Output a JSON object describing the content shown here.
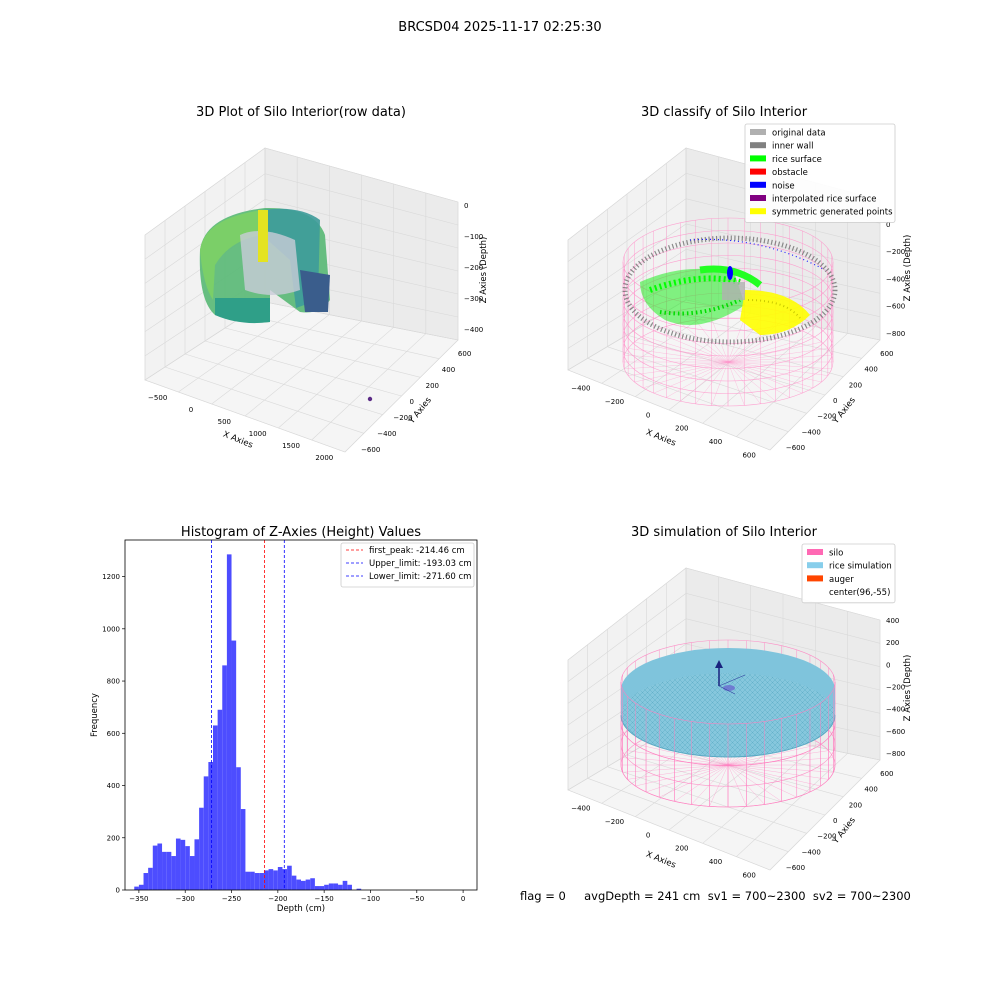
{
  "figure": {
    "suptitle": "BRCSD04 2025-11-17 02:25:30",
    "status_text": "flag = 0     avgDepth = 241 cm  sv1 = 700~2300  sv2 = 700~2300"
  },
  "chart_data": [
    {
      "type": "scatter3d",
      "title": "3D Plot of Silo Interior(row data)",
      "xlabel": "X Axies",
      "ylabel": "Y Axies",
      "zlabel": "Z Axies (Depth)",
      "xticks": [
        "−500",
        "0",
        "500",
        "1000",
        "1500",
        "2000"
      ],
      "yticks": [
        "600",
        "400",
        "200",
        "0",
        "−200",
        "−400",
        "−600"
      ],
      "zticks": [
        "0",
        "−100",
        "−200",
        "−300",
        "−400"
      ],
      "colormap": "viridis",
      "outlier_color": "#5b2a86"
    },
    {
      "type": "scatter3d",
      "title": "3D classify of Silo Interior",
      "xlabel": "X Axies",
      "ylabel": "Y Axies",
      "zlabel": "Z Axies (Depth)",
      "xticks": [
        "−400",
        "−200",
        "0",
        "200",
        "400",
        "600"
      ],
      "yticks": [
        "600",
        "400",
        "200",
        "0",
        "−200",
        "−400",
        "−600"
      ],
      "zticks": [
        "200",
        "0",
        "−200",
        "−400",
        "−600",
        "−800"
      ],
      "zticks_visible": [
        "0",
        "−200",
        "−400",
        "−600",
        "−800"
      ],
      "legend": [
        {
          "label": "original data",
          "color": "#b0b0b0"
        },
        {
          "label": "inner wall",
          "color": "#808080"
        },
        {
          "label": "rice surface",
          "color": "#00ff00"
        },
        {
          "label": "obstacle",
          "color": "#ff0000"
        },
        {
          "label": "noise",
          "color": "#0000ff"
        },
        {
          "label": "interpolated rice surface",
          "color": "#800080"
        },
        {
          "label": "symmetric generated points",
          "color": "#ffff00"
        }
      ],
      "silo_wire_color": "#ff8ec8"
    },
    {
      "type": "bar",
      "title": "Histogram of Z-Axies (Height) Values",
      "xlabel": "Depth (cm)",
      "ylabel": "Frequency",
      "bar_color": "#4d4dff",
      "bin_width": 5,
      "x_start": -355,
      "values": [
        13,
        20,
        65,
        85,
        170,
        178,
        146,
        146,
        130,
        197,
        192,
        168,
        130,
        194,
        315,
        435,
        490,
        630,
        690,
        860,
        1285,
        955,
        470,
        310,
        70,
        70,
        65,
        65,
        75,
        80,
        75,
        88,
        80,
        93,
        55,
        40,
        35,
        40,
        45,
        15,
        15,
        20,
        25,
        25,
        20,
        35,
        20,
        0,
        5,
        0
      ],
      "xlim": [
        -365,
        15
      ],
      "ylim": [
        0,
        1340
      ],
      "xticks": [
        -350,
        -300,
        -250,
        -200,
        -150,
        -100,
        -50,
        0
      ],
      "xtick_labels": [
        "−350",
        "−300",
        "−250",
        "−200",
        "−150",
        "−100",
        "−50",
        "0"
      ],
      "yticks": [
        0,
        200,
        400,
        600,
        800,
        1000,
        1200
      ],
      "vlines": [
        {
          "label": "first_peak: -214.46 cm",
          "x": -214.46,
          "color": "#ff0000"
        },
        {
          "label": "Upper_limit: -193.03 cm",
          "x": -193.03,
          "color": "#0000ff"
        },
        {
          "label": "Lower_limit: -271.60 cm",
          "x": -271.6,
          "color": "#0000ff"
        }
      ],
      "legend_position": "top-right"
    },
    {
      "type": "surface3d",
      "title": "3D simulation of Silo Interior",
      "xlabel": "X Axies",
      "ylabel": "Y Axies",
      "zlabel": "Z Axies (Depth)",
      "xticks": [
        "−400",
        "−200",
        "0",
        "200",
        "400",
        "600"
      ],
      "yticks": [
        "600",
        "400",
        "200",
        "0",
        "−200",
        "−400",
        "−600"
      ],
      "zticks": [
        "400",
        "200",
        "0",
        "−200",
        "−400",
        "−600",
        "−800"
      ],
      "legend": [
        {
          "label": "silo",
          "color": "#ff69b4"
        },
        {
          "label": "rice simulation",
          "color": "#87ceeb"
        },
        {
          "label": "auger",
          "color": "#ff4500"
        },
        {
          "label": "center(96,-55)",
          "color": ""
        }
      ],
      "silo_wire_color": "#ff7fc0",
      "surface_color": "#7fc4dc"
    }
  ]
}
